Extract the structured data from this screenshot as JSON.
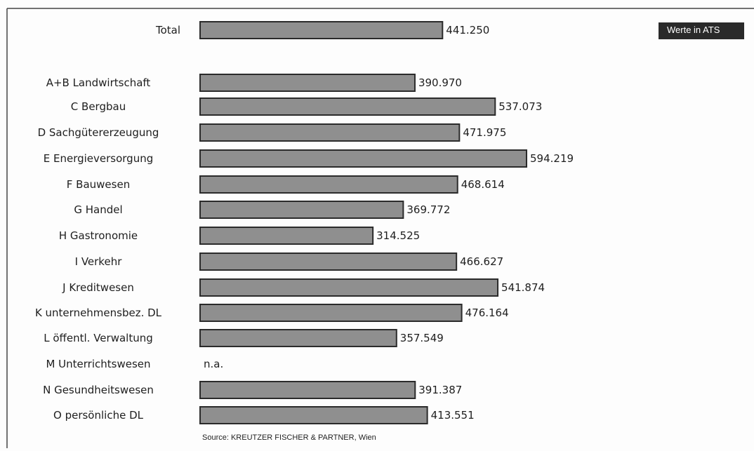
{
  "badge": "Werte in ATS",
  "source": "Source: KREUTZER FISCHER & PARTNER, Wien",
  "chart_data": {
    "type": "bar",
    "orientation": "horizontal",
    "categories": [
      "Total",
      "A+B Landwirtschaft",
      "C Bergbau",
      "D Sachgütererzeugung",
      "E Energieversorgung",
      "F Bauwesen",
      "G Handel",
      "H Gastronomie",
      "I Verkehr",
      "J Kreditwesen",
      "K unternehmensbez. DL",
      "L öffentl. Verwaltung",
      "M Unterrichtswesen",
      "N Gesundheitswesen",
      "O persönliche DL"
    ],
    "values": [
      441250,
      390970,
      537073,
      471975,
      594219,
      468614,
      369772,
      314525,
      466627,
      541874,
      476164,
      357549,
      null,
      391387,
      413551
    ],
    "value_labels": [
      "441.250",
      "390.970",
      "537.073",
      "471.975",
      "594.219",
      "468.614",
      "369.772",
      "314.525",
      "466.627",
      "541.874",
      "476.164",
      "357.549",
      "n.a.",
      "391.387",
      "413.551"
    ],
    "xlim": [
      0,
      594219
    ],
    "grid": false,
    "legend": "none"
  }
}
